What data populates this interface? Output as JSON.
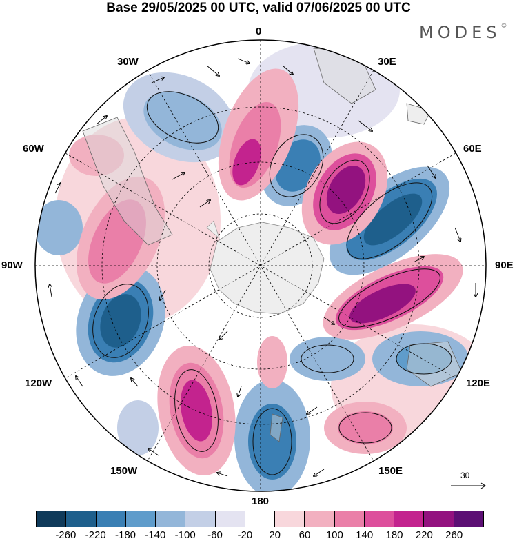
{
  "title": "Base 29/05/2025 00 UTC, valid 07/06/2025 00 UTC",
  "brand": {
    "name": "MODES",
    "mark": "©"
  },
  "longitude_labels": {
    "deg0": "0",
    "e30": "30E",
    "e60": "60E",
    "e90": "90E",
    "e120": "120E",
    "e150": "150E",
    "deg180": "180",
    "w150": "150W",
    "w120": "120W",
    "w90": "90W",
    "w60": "60W",
    "w30": "30W"
  },
  "reference_vector": {
    "label": "30"
  },
  "colorbar": {
    "colors": [
      "#0f3a5a",
      "#1e5f8c",
      "#3a7fb4",
      "#5f9ccb",
      "#93b6d9",
      "#c3cfe6",
      "#e4e3f1",
      "#ffffff",
      "#f8d7dc",
      "#f2b0c0",
      "#ea7fa8",
      "#dd4f9c",
      "#c3238e",
      "#93127f",
      "#5c0f74"
    ],
    "ticks": [
      "-260",
      "-220",
      "-180",
      "-140",
      "-100",
      "-60",
      "-20",
      "20",
      "60",
      "100",
      "140",
      "180",
      "220",
      "260"
    ]
  },
  "colors": {
    "land": "#d9d9d9",
    "antarctica": "#eeeeee",
    "map_frame": "#000000"
  }
}
